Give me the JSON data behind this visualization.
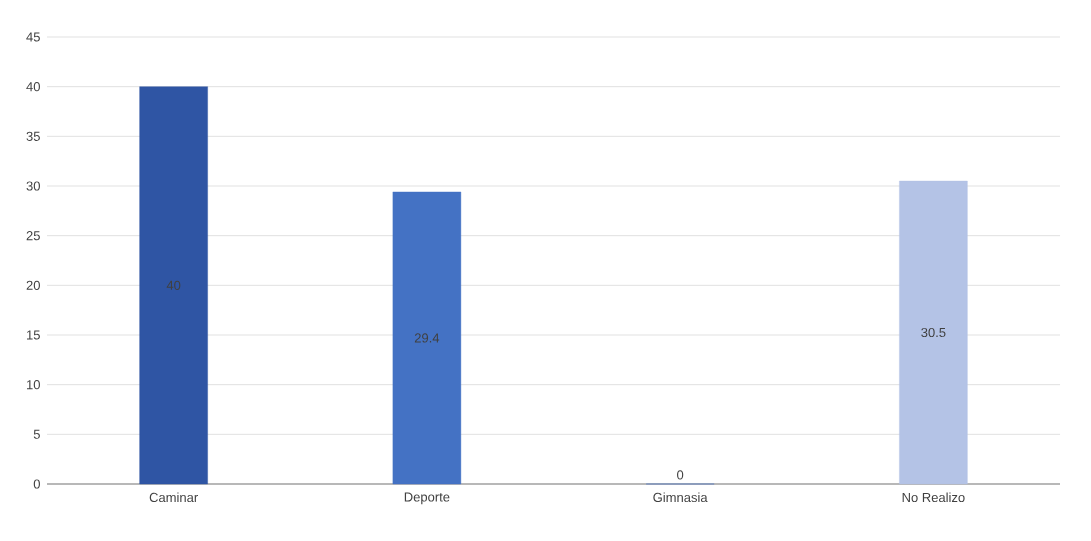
{
  "chart_data": {
    "type": "bar",
    "categories": [
      "Caminar",
      "Deporte",
      "Gimnasia",
      "No Realizo"
    ],
    "values": [
      40,
      29.4,
      0,
      30.5
    ],
    "colors": [
      "#2f55a4",
      "#4472c4",
      "#4472c4",
      "#b4c3e6"
    ],
    "ylim": [
      0,
      45
    ],
    "yticks": [
      0,
      5,
      10,
      15,
      20,
      25,
      30,
      35,
      40,
      45
    ],
    "grid": "y",
    "data_labels": true
  }
}
